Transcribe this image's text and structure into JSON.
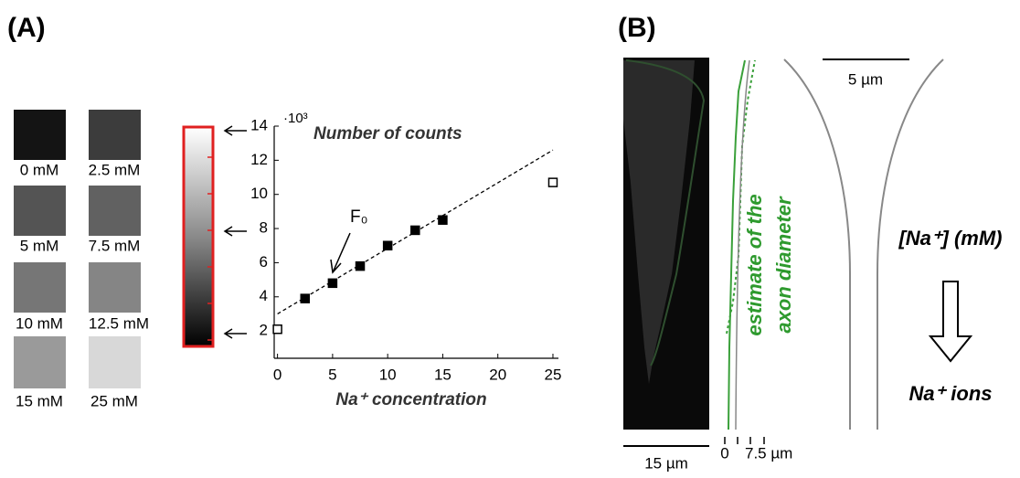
{
  "panel_labels": [
    "(A)",
    "(B)"
  ],
  "thumbnails": [
    "0 mM",
    "2.5 mM",
    "5 mM",
    "7.5 mM",
    "10 mM",
    "12.5 mM",
    "15 mM",
    "25 mM"
  ],
  "chart_data": {
    "type": "scatter",
    "ylabel": "Number of counts",
    "y_multiplier": "·10³",
    "xlabel": "Na⁺ concentration",
    "annotation": "F₀",
    "xlim": [
      -0.3,
      25.5
    ],
    "ylim": [
      0.4,
      14
    ],
    "xticks": [
      0,
      5,
      10,
      15,
      20,
      25
    ],
    "yticks": [
      2,
      4,
      6,
      8,
      10,
      12,
      14
    ],
    "series": [
      {
        "marker": "filled-square",
        "color": "#000000",
        "x": [
          2.5,
          5,
          7.5,
          10,
          12.5,
          15
        ],
        "values": [
          3.9,
          4.8,
          5.8,
          7.0,
          7.9,
          8.5
        ]
      },
      {
        "marker": "open-square",
        "color": "#000000",
        "x": [
          0,
          25
        ],
        "values": [
          2.1,
          10.7
        ]
      },
      {
        "marker": "dashed-line",
        "color": "#000000",
        "x": [
          0,
          25
        ],
        "values": [
          3.0,
          12.6
        ]
      }
    ]
  },
  "panel_b": {
    "scale_top": "5 µm",
    "scale_bottom": "15 µm",
    "diameter_label": [
      "estimate of the",
      "axon diameter"
    ],
    "axis_ticks": [
      "0",
      "7.5 µm"
    ],
    "concentration": "[Na⁺] (mM)",
    "ions": "Na⁺ ions"
  }
}
